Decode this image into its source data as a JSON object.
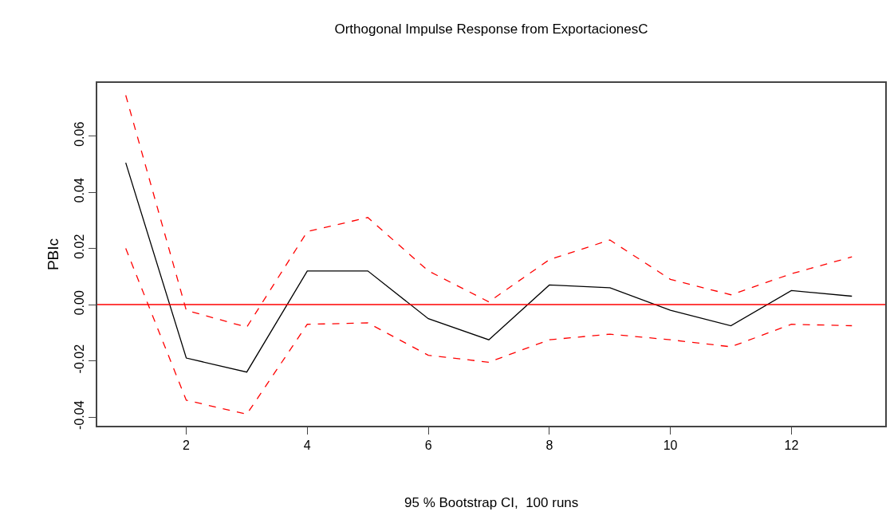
{
  "chart_data": {
    "type": "line",
    "title": "Orthogonal Impulse Response from ExportacionesC",
    "xlabel": "95 % Bootstrap CI,  100 runs",
    "ylabel": "PBIc",
    "x": [
      1,
      2,
      3,
      4,
      5,
      6,
      7,
      8,
      9,
      10,
      11,
      12,
      13
    ],
    "series": [
      {
        "color": "#000000",
        "line_style": "solid",
        "values": [
          0.0505,
          -0.019,
          -0.024,
          0.012,
          0.012,
          -0.005,
          -0.0125,
          0.007,
          0.006,
          -0.002,
          -0.0075,
          0.005,
          0.003
        ]
      },
      {
        "color": "#ff0000",
        "line_style": "dashed",
        "values": [
          0.0745,
          -0.002,
          -0.008,
          0.026,
          0.031,
          0.012,
          0.001,
          0.016,
          0.023,
          0.009,
          0.0035,
          0.011,
          0.017
        ]
      },
      {
        "color": "#ff0000",
        "line_style": "dashed",
        "values": [
          0.02,
          -0.034,
          -0.039,
          -0.007,
          -0.0065,
          -0.018,
          -0.0205,
          -0.0125,
          -0.0105,
          -0.0125,
          -0.015,
          -0.007,
          -0.0075
        ]
      }
    ],
    "xlim": [
      0.53,
      13.55
    ],
    "ylim": [
      -0.0431,
      0.0789
    ],
    "xticks": [
      2,
      4,
      6,
      8,
      10,
      12
    ],
    "yticks": [
      {
        "value": -0.04,
        "label": "-0.04"
      },
      {
        "value": -0.02,
        "label": "-0.02"
      },
      {
        "value": 0,
        "label": "0.00"
      },
      {
        "value": 0.02,
        "label": "0.02"
      },
      {
        "value": 0.04,
        "label": "0.04"
      },
      {
        "value": 0.06,
        "label": "0.06"
      }
    ],
    "ref_lines": [
      {
        "axis": "y",
        "value": 0,
        "color": "#ff0000",
        "line_style": "solid"
      }
    ],
    "marker": "none"
  }
}
